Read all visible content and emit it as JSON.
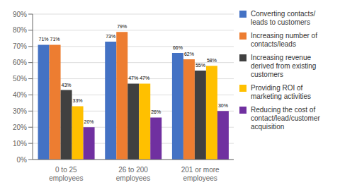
{
  "chart_data": {
    "type": "bar",
    "categories": [
      "0 to 25 employees",
      "26 to 200 employees",
      "201 or more employees"
    ],
    "series": [
      {
        "name": "Converting contacts/\nleads to customers",
        "color": "#4472C4",
        "values": [
          71,
          73,
          66
        ],
        "value_labels": [
          "71%",
          "73%",
          "66%"
        ]
      },
      {
        "name": "Increasing number of\ncontacts/leads",
        "color": "#ED7D31",
        "values": [
          71,
          79,
          62
        ],
        "value_labels": [
          "71%",
          "79%",
          "62%"
        ]
      },
      {
        "name": "Increasing revenue\nderived from existing\ncustomers",
        "color": "#404040",
        "values": [
          43,
          47,
          55
        ],
        "value_labels": [
          "43%",
          "47%",
          "55%"
        ]
      },
      {
        "name": "Providing ROI of\nmarketing activities",
        "color": "#FFC000",
        "values": [
          33,
          47,
          58
        ],
        "value_labels": [
          "33%",
          "47%",
          "58%"
        ]
      },
      {
        "name": "Reducing the cost of\ncontact/lead/customer\nacquisition",
        "color": "#7030A0",
        "values": [
          20,
          26,
          30
        ],
        "value_labels": [
          "20%",
          "26%",
          "30%"
        ]
      }
    ],
    "ylim": [
      0,
      90
    ],
    "yticks": [
      {
        "value": 0,
        "label": "0%"
      },
      {
        "value": 10,
        "label": "10%"
      },
      {
        "value": 20,
        "label": "20%"
      },
      {
        "value": 30,
        "label": "30%"
      },
      {
        "value": 40,
        "label": "40%"
      },
      {
        "value": 50,
        "label": "50%"
      },
      {
        "value": 60,
        "label": "60%"
      },
      {
        "value": 70,
        "label": "70%"
      },
      {
        "value": 80,
        "label": "80%"
      },
      {
        "value": 90,
        "label": "90%"
      }
    ],
    "grid": true,
    "legend": "right",
    "data_labels": true
  }
}
